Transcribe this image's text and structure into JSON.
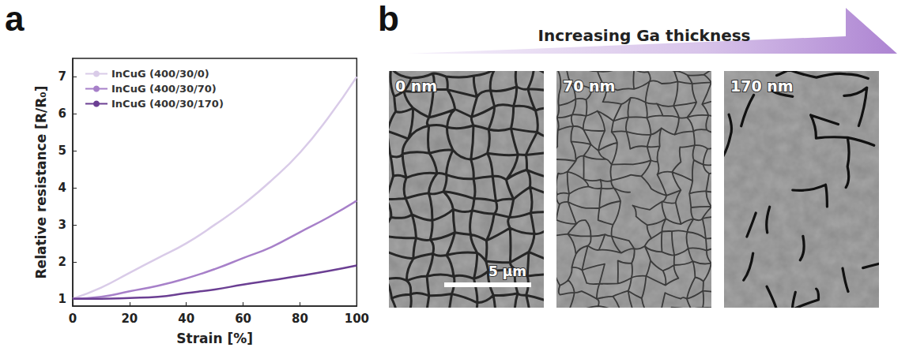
{
  "chart_data": {
    "type": "line",
    "xlabel": "Strain [%]",
    "ylabel": "Relative resistance [R/R₀]",
    "x": [
      0,
      10,
      20,
      30,
      40,
      50,
      60,
      70,
      80,
      90,
      100
    ],
    "series": [
      {
        "name": "InCuG (400/30/0)",
        "color": "#d9cbe8",
        "values": [
          1.0,
          1.3,
          1.7,
          2.1,
          2.5,
          3.0,
          3.55,
          4.2,
          4.95,
          5.9,
          7.0
        ]
      },
      {
        "name": "InCuG (400/30/70)",
        "color": "#a780c9",
        "values": [
          1.0,
          1.05,
          1.2,
          1.35,
          1.55,
          1.8,
          2.1,
          2.4,
          2.8,
          3.2,
          3.65
        ]
      },
      {
        "name": "InCuG (400/30/170)",
        "color": "#6b3f93",
        "values": [
          1.0,
          1.0,
          1.02,
          1.05,
          1.15,
          1.25,
          1.38,
          1.5,
          1.62,
          1.75,
          1.9
        ]
      }
    ],
    "xlim": [
      0,
      100
    ],
    "xticks": [
      0,
      20,
      40,
      60,
      80,
      100
    ],
    "ylim": [
      0.8,
      7.5
    ],
    "yticks": [
      1,
      2,
      3,
      4,
      5,
      6,
      7
    ],
    "legend": "upper left",
    "grid": false
  },
  "panel_labels": {
    "chart": "a",
    "images": "b"
  },
  "images": {
    "banner": "Increasing Ga thickness",
    "panels": [
      "0 nm",
      "70 nm",
      "170 nm"
    ],
    "scale_bar": "5 μm"
  }
}
